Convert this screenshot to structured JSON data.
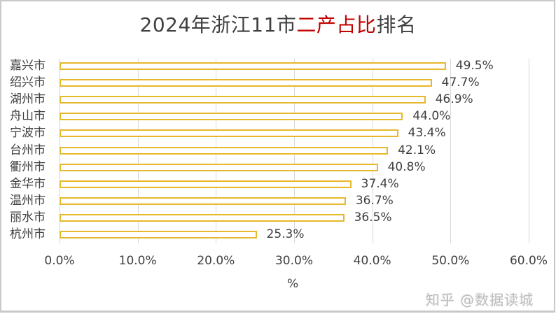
{
  "chart_data": {
    "type": "bar",
    "orientation": "horizontal",
    "title": "2024年浙江11市二产占比排名",
    "title_parts": [
      {
        "text": "2024年浙江11市",
        "color": "#404040"
      },
      {
        "text": "二产占比",
        "color": "#c00000"
      },
      {
        "text": "排名",
        "color": "#404040"
      }
    ],
    "categories": [
      "嘉兴市",
      "绍兴市",
      "湖州市",
      "舟山市",
      "宁波市",
      "台州市",
      "衢州市",
      "金华市",
      "温州市",
      "丽水市",
      "杭州市"
    ],
    "values": [
      49.5,
      47.7,
      46.9,
      44.0,
      43.4,
      42.1,
      40.8,
      37.4,
      36.7,
      36.5,
      25.3
    ],
    "data_labels": [
      "49.5%",
      "47.7%",
      "46.9%",
      "44.0%",
      "43.4%",
      "42.1%",
      "40.8%",
      "37.4%",
      "36.7%",
      "36.5%",
      "25.3%"
    ],
    "xlabel": "%",
    "ylabel": "",
    "xlim": [
      0,
      60
    ],
    "x_ticks": [
      "0.0%",
      "10.0%",
      "20.0%",
      "30.0%",
      "40.0%",
      "50.0%",
      "60.0%"
    ],
    "grid": "vertical",
    "legend": "none",
    "bar_style": {
      "fill": "#ffffff",
      "stroke": "#e6b82c"
    }
  },
  "watermark": "知乎 @数据读城"
}
